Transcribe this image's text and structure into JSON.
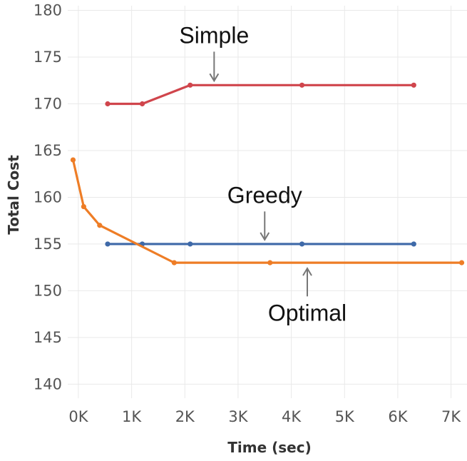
{
  "chart_data": {
    "type": "line",
    "title": "",
    "xlabel": "Time (sec)",
    "ylabel": "Total Cost",
    "xlim": [
      -200,
      7300
    ],
    "ylim": [
      138.5,
      180.5
    ],
    "x_ticks": [
      0,
      1000,
      2000,
      3000,
      4000,
      5000,
      6000,
      7000
    ],
    "x_tick_labels": [
      "0K",
      "1K",
      "2K",
      "3K",
      "4K",
      "5K",
      "6K",
      "7K"
    ],
    "y_ticks": [
      140,
      145,
      150,
      155,
      160,
      165,
      170,
      175,
      180
    ],
    "y_tick_labels": [
      "140",
      "145",
      "150",
      "155",
      "160",
      "165",
      "170",
      "175",
      "180"
    ],
    "grid": true,
    "series": [
      {
        "name": "Simple",
        "color": "#d0454c",
        "points": [
          [
            550,
            170
          ],
          [
            1200,
            170
          ],
          [
            2100,
            172
          ],
          [
            4200,
            172
          ],
          [
            6300,
            172
          ]
        ]
      },
      {
        "name": "Greedy",
        "color": "#3e69a8",
        "points": [
          [
            550,
            155
          ],
          [
            1200,
            155
          ],
          [
            2100,
            155
          ],
          [
            4200,
            155
          ],
          [
            6300,
            155
          ]
        ]
      },
      {
        "name": "Optimal",
        "color": "#ee7d26",
        "points": [
          [
            -100,
            164
          ],
          [
            100,
            159
          ],
          [
            400,
            157
          ],
          [
            1800,
            153
          ],
          [
            3600,
            153
          ],
          [
            7200,
            153
          ]
        ]
      }
    ],
    "annotations": [
      {
        "text": "Simple",
        "series": "Simple",
        "arrow_to": [
          2550,
          172
        ],
        "text_at": [
          2550,
          176.5
        ]
      },
      {
        "text": "Greedy",
        "series": "Greedy",
        "arrow_to": [
          3500,
          155
        ],
        "text_at": [
          3500,
          159.4
        ]
      },
      {
        "text": "Optimal",
        "series": "Optimal",
        "arrow_to": [
          4300,
          153
        ],
        "text_at": [
          4300,
          146.8
        ]
      }
    ]
  }
}
